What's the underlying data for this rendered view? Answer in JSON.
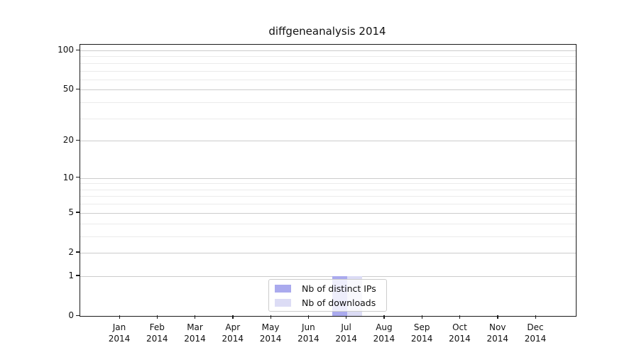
{
  "chart_data": {
    "type": "bar",
    "title": "diffgeneanalysis 2014",
    "categories": [
      "Jan 2014",
      "Feb 2014",
      "Mar 2014",
      "Apr 2014",
      "May 2014",
      "Jun 2014",
      "Jul 2014",
      "Aug 2014",
      "Sep 2014",
      "Oct 2014",
      "Nov 2014",
      "Dec 2014"
    ],
    "series": [
      {
        "name": "Nb of distinct IPs",
        "color": "#aaaaee",
        "values": [
          0,
          0,
          0,
          0,
          0,
          0,
          1,
          0,
          0,
          0,
          0,
          0
        ]
      },
      {
        "name": "Nb of downloads",
        "color": "#dcdcf5",
        "values": [
          0,
          0,
          0,
          0,
          0,
          0,
          1,
          0,
          0,
          0,
          0,
          0
        ]
      }
    ],
    "xlabel": "",
    "ylabel": "",
    "yscale": "log1p",
    "yticks": [
      0,
      1,
      2,
      5,
      10,
      20,
      50,
      100
    ],
    "yminorticks": [
      3,
      4,
      6,
      7,
      8,
      9,
      30,
      40,
      60,
      70,
      80,
      90
    ],
    "ylim": [
      0,
      110
    ],
    "grid": true,
    "legend_position": "inside-bottom-center"
  },
  "colors": {
    "major_grid": "#cccccc",
    "minor_grid": "#ebebeb",
    "axis": "#1a1a1a",
    "text": "#111111",
    "legend_border": "#cccccc"
  }
}
